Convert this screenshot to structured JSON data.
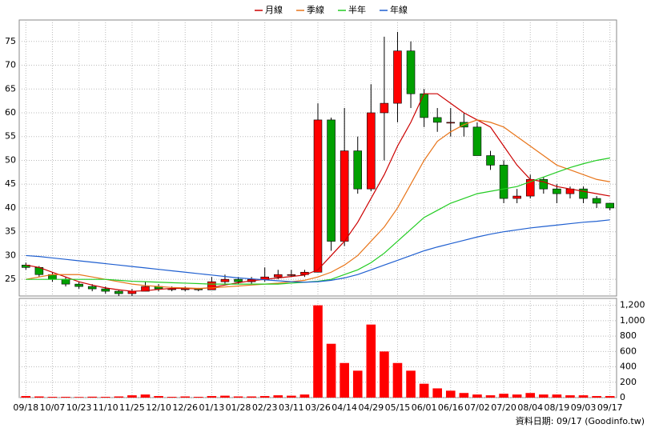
{
  "chart_data": [
    {
      "type": "candlestick",
      "open": [
        28,
        27.5,
        26,
        25,
        24,
        23.5,
        23,
        22.5,
        22,
        22.5,
        23.5,
        23,
        23,
        23,
        22.8,
        24.5,
        25,
        24.5,
        25,
        25.5,
        26,
        26,
        26.5,
        58.5,
        33,
        52,
        44,
        60,
        62,
        73,
        64,
        59,
        58,
        58,
        57,
        51,
        49,
        42,
        42.5,
        46,
        44,
        43,
        44,
        42,
        41
      ],
      "high": [
        28.5,
        27.8,
        26.5,
        25.5,
        24.5,
        24,
        23.5,
        22.8,
        23,
        24.5,
        24,
        23.5,
        23.5,
        23.2,
        25.5,
        26,
        25.5,
        25.5,
        27.5,
        27,
        27,
        27,
        62,
        59,
        61,
        55,
        66,
        76,
        77,
        75,
        65,
        61,
        61,
        60,
        58,
        52,
        50,
        44,
        47,
        46.5,
        45,
        44.5,
        44.5,
        42.5,
        41
      ],
      "low": [
        27,
        25.5,
        24.5,
        23.5,
        23,
        22.5,
        22,
        21.5,
        21.5,
        22.5,
        22.5,
        22.5,
        22.5,
        22.5,
        22.8,
        24,
        24,
        24,
        24.5,
        25,
        25.5,
        25.5,
        26.5,
        31,
        32,
        43,
        43.5,
        50,
        58,
        61,
        57,
        56,
        55,
        55,
        51,
        48,
        41,
        41,
        42,
        43,
        41,
        42,
        41,
        40,
        39.5
      ],
      "close": [
        27.5,
        26,
        25,
        24,
        23.5,
        23,
        22.5,
        22,
        22.5,
        23.5,
        23,
        23,
        23,
        22.8,
        24.5,
        25,
        24.5,
        25,
        25.5,
        26,
        26,
        26.5,
        58.5,
        33,
        52,
        44,
        60,
        62,
        73,
        64,
        59,
        58,
        58,
        57,
        51,
        49,
        42,
        42.5,
        46,
        44,
        43,
        44,
        42,
        41,
        40
      ],
      "up_color": "#ff0000",
      "down_color": "#00a000",
      "series": [
        {
          "name": "月線",
          "color": "#cc0000",
          "values": [
            28,
            27.5,
            26.5,
            25.5,
            24.5,
            23.8,
            23.2,
            22.8,
            22.5,
            22.6,
            22.9,
            23.1,
            23.1,
            23,
            23.3,
            23.8,
            24.3,
            24.7,
            25,
            25.3,
            25.6,
            25.9,
            27,
            30,
            33,
            37,
            42,
            47,
            53,
            58,
            64,
            64,
            62,
            60,
            58.5,
            57,
            53,
            49,
            46,
            45.5,
            44.5,
            44,
            43.5,
            43,
            42.5
          ]
        },
        {
          "name": "季線",
          "color": "#e8751a",
          "values": [
            25,
            25.5,
            26,
            26,
            26,
            25.5,
            25,
            24.5,
            24,
            23.7,
            23.5,
            23.3,
            23.2,
            23.1,
            23.2,
            23.4,
            23.6,
            23.8,
            24,
            24.2,
            24.5,
            24.8,
            25.5,
            26.5,
            28,
            30,
            33,
            36,
            40,
            45,
            50,
            54,
            56,
            57.5,
            58.5,
            58,
            57,
            55,
            53,
            51,
            49,
            48,
            47,
            46,
            45.5
          ]
        },
        {
          "name": "半年",
          "color": "#22cc22",
          "values": [
            25,
            25,
            25,
            25,
            25,
            25,
            25,
            24.8,
            24.6,
            24.5,
            24.4,
            24.3,
            24.2,
            24.1,
            24,
            24,
            24,
            24,
            24,
            24,
            24.2,
            24.4,
            24.6,
            25,
            26,
            27,
            28.5,
            30.5,
            33,
            35.5,
            38,
            39.5,
            41,
            42,
            43,
            43.5,
            44,
            44.5,
            45.5,
            46.5,
            47.5,
            48.5,
            49.3,
            50,
            50.5
          ]
        },
        {
          "name": "年線",
          "color": "#1f5fd0",
          "values": [
            30,
            29.8,
            29.5,
            29.2,
            28.9,
            28.6,
            28.3,
            28,
            27.7,
            27.4,
            27.1,
            26.8,
            26.5,
            26.2,
            25.9,
            25.6,
            25.3,
            25.1,
            24.9,
            24.7,
            24.5,
            24.4,
            24.5,
            24.8,
            25.3,
            26,
            27,
            28,
            29,
            30,
            31,
            31.8,
            32.5,
            33.2,
            33.9,
            34.5,
            35,
            35.4,
            35.8,
            36.1,
            36.4,
            36.7,
            37,
            37.2,
            37.5
          ]
        }
      ],
      "ylim": [
        21.5,
        79.5
      ],
      "yticks": [
        25,
        30,
        35,
        40,
        45,
        50,
        55,
        60,
        65,
        70,
        75
      ],
      "grid": true
    },
    {
      "type": "bar",
      "categories": [
        "09/18",
        null,
        "10/07",
        null,
        "10/23",
        null,
        "11/10",
        null,
        "11/25",
        null,
        "12/10",
        null,
        "12/26",
        null,
        "01/13",
        null,
        "01/28",
        null,
        "02/23",
        null,
        "03/11",
        null,
        "03/26",
        null,
        "04/14",
        null,
        "04/29",
        null,
        "05/15",
        null,
        "06/01",
        null,
        "06/16",
        null,
        "07/02",
        null,
        "07/20",
        null,
        "08/04",
        null,
        "08/19",
        null,
        "09/03",
        null,
        "09/17"
      ],
      "values": [
        20,
        15,
        10,
        10,
        8,
        12,
        10,
        15,
        30,
        40,
        20,
        10,
        15,
        10,
        20,
        25,
        15,
        15,
        20,
        30,
        25,
        40,
        1200,
        700,
        450,
        350,
        950,
        600,
        450,
        350,
        180,
        120,
        90,
        60,
        40,
        30,
        50,
        40,
        60,
        40,
        40,
        30,
        30,
        20,
        20
      ],
      "color": "#ff0000",
      "ylim": [
        0,
        1290
      ],
      "yticks": [
        0,
        200,
        400,
        600,
        800,
        {
          "value": 1000,
          "label": "1,000"
        },
        {
          "value": 1200,
          "label": "1,200"
        }
      ],
      "grid": true,
      "source": "資料日期: 09/17  (Goodinfo.tw)"
    }
  ]
}
